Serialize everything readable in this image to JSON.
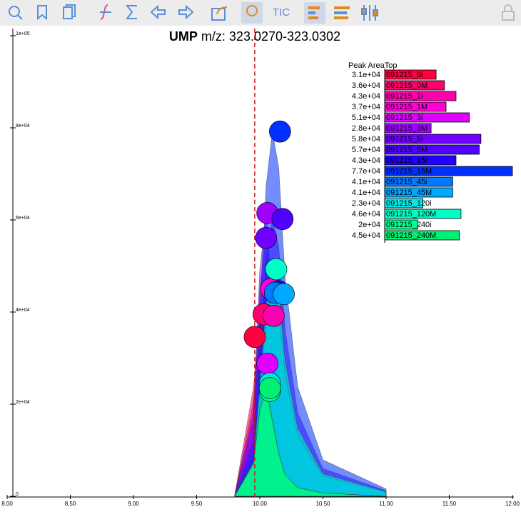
{
  "toolbar": {
    "tic": "TIC"
  },
  "chart_data": {
    "type": "area",
    "title_bold": "UMP",
    "title": "m/z: 323.0270-323.0302",
    "x": [
      9.8,
      9.95,
      10.0,
      10.05,
      10.1,
      10.15,
      10.2,
      10.3,
      10.5,
      11.0
    ],
    "xlim": [
      8,
      12
    ],
    "xticks": [
      {
        "value": 8,
        "label": "8.00"
      },
      {
        "value": 8.5,
        "label": "8.50"
      },
      {
        "value": 9,
        "label": "9.00"
      },
      {
        "value": 9.5,
        "label": "9.50"
      },
      {
        "value": 10,
        "label": "10.00"
      },
      {
        "value": 10.5,
        "label": "10.50"
      },
      {
        "value": 11,
        "label": "11.00"
      },
      {
        "value": 11.5,
        "label": "11.50"
      },
      {
        "value": 12,
        "label": "12.00"
      }
    ],
    "ylim": [
      0,
      100000
    ],
    "yticks": [
      0,
      {
        "value": 20000,
        "label": "2e+04"
      },
      {
        "value": 40000,
        "label": "4e+04"
      },
      {
        "value": 60000,
        "label": "6e+04"
      },
      {
        "value": 80000,
        "label": "8e+04"
      },
      {
        "value": 100000,
        "label": "1e+05"
      }
    ],
    "marker_rt": 9.96,
    "legend_title": "Peak AreaTop",
    "series": [
      {
        "name": "091215_0i",
        "color": "#ff0040",
        "values": [
          0,
          20800,
          32900,
          27700,
          17300,
          10400,
          5200,
          1700,
          700,
          0
        ],
        "peak_rt": 9.96,
        "peak_value": 34600,
        "area": 31000,
        "area_label": "3.1e+04"
      },
      {
        "name": "091215_0M",
        "color": "#ff0070",
        "values": [
          0,
          23700,
          37500,
          31600,
          19800,
          11900,
          5900,
          2000,
          800,
          0
        ],
        "peak_rt": 10.03,
        "peak_value": 39500,
        "area": 36000,
        "area_label": "3.6e+04"
      },
      {
        "name": "091215_1i",
        "color": "#ff00b0",
        "values": [
          0,
          5900,
          19600,
          33300,
          39200,
          35300,
          23500,
          11800,
          3900,
          800
        ],
        "peak_rt": 10.11,
        "peak_value": 39200,
        "area": 43000,
        "area_label": "4.3e+04"
      },
      {
        "name": "091215_1M",
        "color": "#ff00d8",
        "values": [
          0,
          13500,
          36000,
          45000,
          31500,
          18000,
          9000,
          3600,
          1400,
          0
        ],
        "peak_rt": 10.09,
        "peak_value": 45000,
        "area": 37000,
        "area_label": "3.7e+04"
      },
      {
        "name": "091215_3i",
        "color": "#e000ff",
        "values": [
          0,
          8600,
          23000,
          28800,
          20200,
          11500,
          5800,
          2300,
          900,
          0
        ],
        "peak_rt": 10.06,
        "peak_value": 28800,
        "area": 51000,
        "area_label": "5.1e+04"
      },
      {
        "name": "091215_3M",
        "color": "#a000ff",
        "values": [
          0,
          18500,
          49200,
          61500,
          43100,
          24600,
          12300,
          4900,
          1800,
          0
        ],
        "peak_rt": 10.06,
        "peak_value": 61500,
        "area": 28000,
        "area_label": "2.8e+04"
      },
      {
        "name": "091215_5i",
        "color": "#7000ff",
        "values": [
          0,
          16800,
          44900,
          56100,
          39300,
          22400,
          11200,
          4500,
          1700,
          0
        ],
        "peak_rt": 10.05,
        "peak_value": 56100,
        "area": 58000,
        "area_label": "5.8e+04"
      },
      {
        "name": "091215_5M",
        "color": "#5000ff",
        "values": [
          0,
          9000,
          30100,
          51200,
          60200,
          54200,
          36100,
          18100,
          6000,
          1200
        ],
        "peak_rt": 10.18,
        "peak_value": 60200,
        "area": 57000,
        "area_label": "5.7e+04"
      },
      {
        "name": "091215_15i",
        "color": "#2000ff",
        "values": [
          0,
          6700,
          22300,
          37800,
          44500,
          40100,
          26700,
          13400,
          4500,
          900
        ],
        "peak_rt": 10.15,
        "peak_value": 44500,
        "area": 43000,
        "area_label": "4.3e+04"
      },
      {
        "name": "091215_15M",
        "color": "#0030ff",
        "values": [
          0,
          11900,
          39600,
          67300,
          79200,
          71300,
          47500,
          23800,
          7900,
          1600
        ],
        "peak_rt": 10.16,
        "peak_value": 79200,
        "area": 77000,
        "area_label": "7.7e+04"
      },
      {
        "name": "091215_45i",
        "color": "#0078ff",
        "values": [
          0,
          6600,
          22100,
          37600,
          44200,
          39800,
          26500,
          13300,
          4400,
          900
        ],
        "peak_rt": 10.12,
        "peak_value": 44200,
        "area": 41000,
        "area_label": "4.1e+04"
      },
      {
        "name": "091215_45M",
        "color": "#00a8ff",
        "values": [
          0,
          6600,
          22000,
          37300,
          43900,
          39500,
          26300,
          13200,
          4400,
          900
        ],
        "peak_rt": 10.19,
        "peak_value": 43900,
        "area": 41000,
        "area_label": "4.1e+04"
      },
      {
        "name": "091215_120i",
        "color": "#00e8e8",
        "values": [
          0,
          7400,
          19600,
          24500,
          17200,
          9800,
          4900,
          2000,
          700,
          0
        ],
        "peak_rt": 10.08,
        "peak_value": 24500,
        "area": 23000,
        "area_label": "2.3e+04"
      },
      {
        "name": "091215_120M",
        "color": "#00ffc8",
        "values": [
          0,
          7400,
          24700,
          41900,
          49300,
          44400,
          29600,
          14800,
          4900,
          1000
        ],
        "peak_rt": 10.13,
        "peak_value": 49300,
        "area": 46000,
        "area_label": "4.6e+04"
      },
      {
        "name": "091215_240i",
        "color": "#00ff90",
        "values": [
          0,
          6900,
          18300,
          22900,
          16000,
          9200,
          4600,
          1800,
          700,
          0
        ],
        "peak_rt": 10.08,
        "peak_value": 22900,
        "area": 20000,
        "area_label": "2e+04"
      },
      {
        "name": "091215_240M",
        "color": "#00f070",
        "values": [
          0,
          7100,
          18800,
          23500,
          16500,
          9400,
          4700,
          1900,
          700,
          0
        ],
        "peak_rt": 10.08,
        "peak_value": 23500,
        "area": 45000,
        "area_label": "4.5e+04"
      }
    ]
  }
}
